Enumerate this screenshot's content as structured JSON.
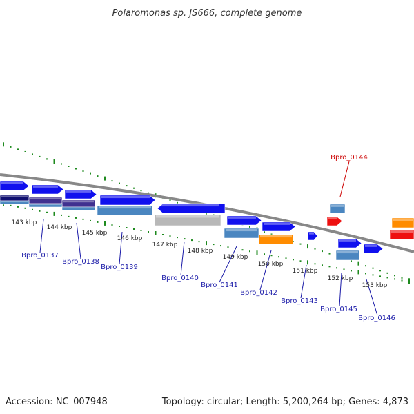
{
  "title": "Polaromonas sp. JS666, complete genome",
  "footer": {
    "accession": "Accession: NC_007948",
    "summary": "Topology: circular; Length: 5,200,264 bp; Genes: 4,873"
  },
  "colors": {
    "cds": "#1010ee",
    "rna": "#ee1010",
    "steel": "#4a86c0",
    "navy": "#101070",
    "purple": "#403090",
    "grey": "#b8b8b8",
    "orange": "#ff8c00",
    "gene_label": "#1a1aa8",
    "highlight_label": "#cc0000",
    "dots": "#1e8a1e",
    "backbone": "#888888"
  },
  "ticks": [
    "143 kbp",
    "144 kbp",
    "145 kbp",
    "146 kbp",
    "147 kbp",
    "148 kbp",
    "149 kbp",
    "150 kbp",
    "151 kbp",
    "152 kbp",
    "153 kbp"
  ],
  "genes": [
    "Bpro_0137",
    "Bpro_0138",
    "Bpro_0139",
    "Bpro_0140",
    "Bpro_0141",
    "Bpro_0142",
    "Bpro_0143",
    "Bpro_0144",
    "Bpro_0145",
    "Bpro_0146"
  ]
}
